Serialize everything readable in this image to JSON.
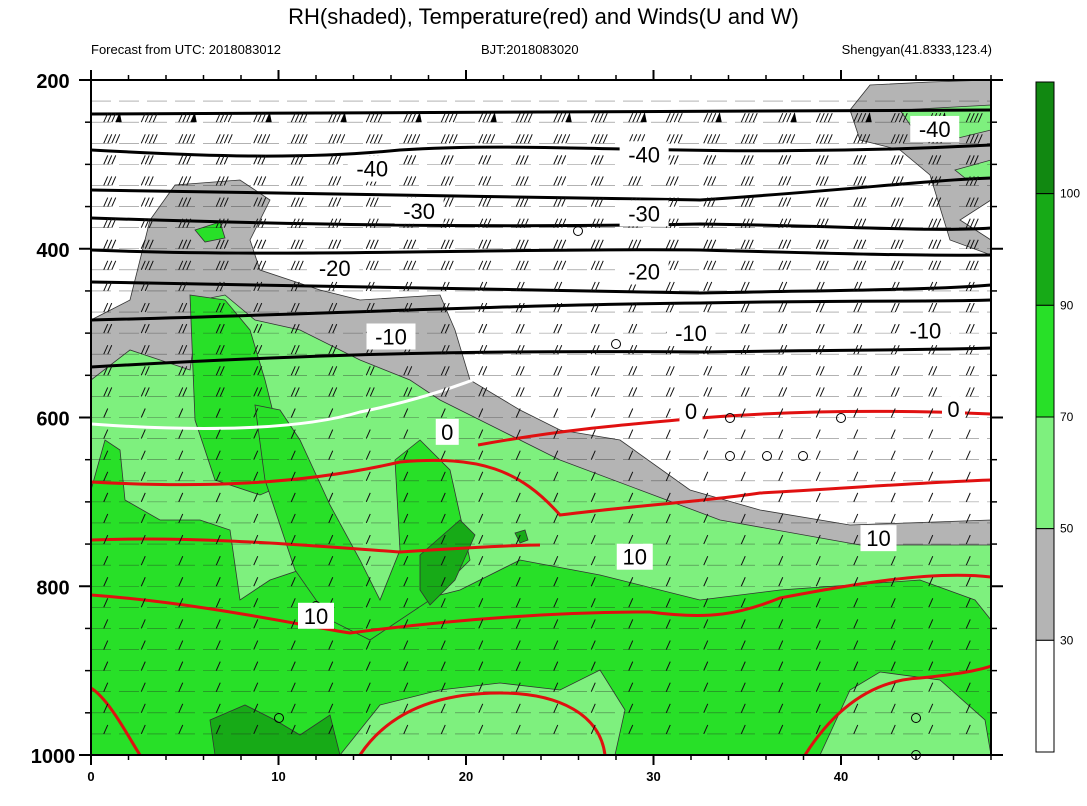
{
  "title": "RH(shaded), Temperature(red) and Winds(U and W)",
  "subtitle_left": "Forecast from UTC: 2018083012",
  "subtitle_center": "BJT:2018083020",
  "subtitle_right": "Shengyan(41.8333,123.4)",
  "colors": {
    "rh_30_50": "#b4b4b4",
    "rh_50_70": "#7ef07e",
    "rh_70_90": "#28e028",
    "rh_90_100": "#17aa17",
    "rh_100": "#118811",
    "temperature": "#e01010",
    "freezing": "#ffffff",
    "isotherm": "#000000"
  },
  "chart_data": {
    "type": "heatmap",
    "description_fields": "time-pressure cross section",
    "x_ticks": [
      0,
      10,
      20,
      30,
      40
    ],
    "xlim": [
      0,
      48
    ],
    "y_ticks": [
      200,
      400,
      600,
      800,
      1000
    ],
    "ylim": [
      200,
      1000
    ],
    "y_reversed": true,
    "colorbar": {
      "levels": [
        30,
        50,
        70,
        90,
        100
      ],
      "colors": [
        "#ffffff",
        "#b4b4b4",
        "#7ef07e",
        "#28e028",
        "#17aa17",
        "#118811"
      ]
    },
    "contour_labels": [
      {
        "text": "-40",
        "x": 15.0,
        "p": 305
      },
      {
        "text": "-40",
        "x": 29.5,
        "p": 288
      },
      {
        "text": "-40",
        "x": 45.0,
        "p": 258
      },
      {
        "text": "-30",
        "x": 17.5,
        "p": 355
      },
      {
        "text": "-30",
        "x": 29.5,
        "p": 358
      },
      {
        "text": "-20",
        "x": 13.0,
        "p": 423
      },
      {
        "text": "-20",
        "x": 29.5,
        "p": 427
      },
      {
        "text": "-10",
        "x": 16.0,
        "p": 504
      },
      {
        "text": "-10",
        "x": 32.0,
        "p": 500
      },
      {
        "text": "-10",
        "x": 44.5,
        "p": 497
      },
      {
        "text": "0",
        "x": 19.0,
        "p": 617
      },
      {
        "text": "0",
        "x": 32.0,
        "p": 592
      },
      {
        "text": "0",
        "x": 46.0,
        "p": 590
      },
      {
        "text": "10",
        "x": 29.0,
        "p": 765
      },
      {
        "text": "10",
        "x": 42.0,
        "p": 743
      },
      {
        "text": "10",
        "x": 12.0,
        "p": 835
      }
    ]
  }
}
